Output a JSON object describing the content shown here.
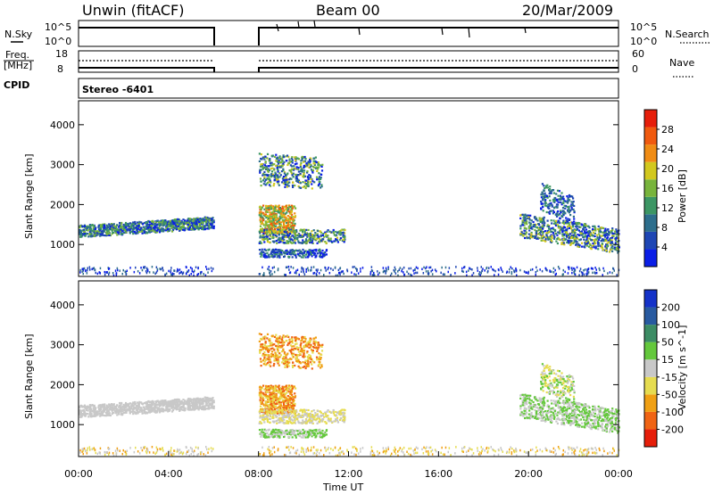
{
  "header": {
    "station": "Unwin (fitACF)",
    "beam": "Beam 00",
    "date": "20/Mar/2009"
  },
  "summary": {
    "nsky_label": "N.Sky",
    "nsearch_label": "N.Search",
    "freq_label_1": "Freq.",
    "freq_label_2": "[MHz]",
    "nave_label": "Nave",
    "cpid_label": "CPID",
    "stereo_label": "Stereo -6401",
    "noise_ticks_left": [
      "10^5",
      "10^0"
    ],
    "noise_ticks_right": [
      "10^5",
      "10^0"
    ],
    "freq_ticks": [
      "18",
      "8"
    ],
    "nave_ticks": [
      "60",
      "0"
    ]
  },
  "colors": {
    "power_scale": [
      "#0a1ee6",
      "#1e46b4",
      "#2d6e8c",
      "#3c9664",
      "#78b43c",
      "#d2c81e",
      "#f08c14",
      "#f05a0f",
      "#e61e0a"
    ],
    "velocity_scale": [
      "#1432c8",
      "#285aa0",
      "#3c8c64",
      "#64c83c",
      "#c8c8c8",
      "#e6dc50",
      "#f0a014",
      "#f06414",
      "#e61e0a"
    ],
    "line": "#000000"
  },
  "chart_data": [
    {
      "type": "heatmap",
      "name": "power",
      "xlabel": "",
      "ylabel": "Slant Range [km]",
      "xlim": [
        0,
        24
      ],
      "ylim": [
        200,
        4600
      ],
      "yticks": [
        "1000",
        "2000",
        "3000",
        "4000"
      ],
      "colorbar_label": "Power [dB]",
      "colorbar_ticks": [
        "4",
        "8",
        "12",
        "16",
        "20",
        "24",
        "28"
      ],
      "colorbar_range": [
        0,
        32
      ]
    },
    {
      "type": "heatmap",
      "name": "velocity",
      "xlabel": "Time UT",
      "ylabel": "Slant Range [km]",
      "xlim": [
        0,
        24
      ],
      "ylim": [
        200,
        4600
      ],
      "xticks": [
        "00:00",
        "04:00",
        "08:00",
        "12:00",
        "16:00",
        "20:00",
        "00:00"
      ],
      "yticks": [
        "1000",
        "2000",
        "3000",
        "4000"
      ],
      "colorbar_label": "Velocity [m s^-1]",
      "colorbar_ticks": [
        "200",
        "100",
        "50",
        "15",
        "-15",
        "-50",
        "-100",
        "-200"
      ]
    }
  ]
}
